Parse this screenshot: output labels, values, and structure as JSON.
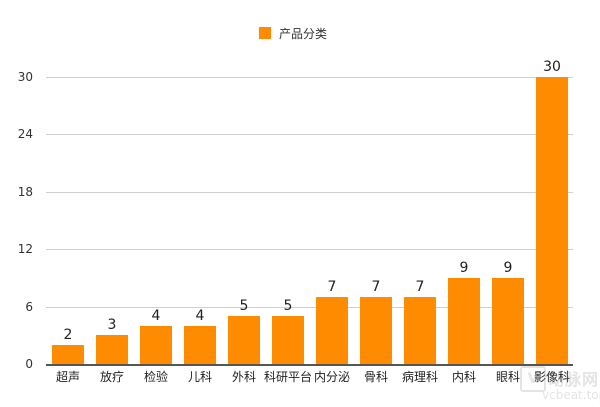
{
  "chart_data": {
    "type": "bar",
    "title": "",
    "xlabel": "",
    "ylabel": "",
    "legend": {
      "position": "top",
      "entries": [
        "产品分类"
      ]
    },
    "series": [
      {
        "name": "产品分类",
        "color": "#ff8c00",
        "values": [
          2,
          3,
          4,
          4,
          5,
          5,
          7,
          7,
          7,
          9,
          9,
          30
        ]
      }
    ],
    "categories": [
      "超声",
      "放疗",
      "检验",
      "儿科",
      "外科",
      "科研平台",
      "内分泌",
      "骨科",
      "病理科",
      "内科",
      "眼科",
      "影像科"
    ],
    "values": [
      2,
      3,
      4,
      4,
      5,
      5,
      7,
      7,
      7,
      9,
      9,
      30
    ],
    "ylim": [
      0,
      30
    ],
    "yticks": [
      0,
      6,
      12,
      18,
      24,
      30
    ],
    "grid": true,
    "data_labels": true
  },
  "legend": {
    "label": "产品分类",
    "color": "#ff8c00"
  },
  "yticks": [
    "30",
    "24",
    "18",
    "12",
    "6",
    "0"
  ],
  "bars": [
    {
      "label": "超声",
      "value": "2"
    },
    {
      "label": "放疗",
      "value": "3"
    },
    {
      "label": "检验",
      "value": "4"
    },
    {
      "label": "儿科",
      "value": "4"
    },
    {
      "label": "外科",
      "value": "5"
    },
    {
      "label": "科研平台",
      "value": "5"
    },
    {
      "label": "内分泌",
      "value": "7"
    },
    {
      "label": "骨科",
      "value": "7"
    },
    {
      "label": "病理科",
      "value": "7"
    },
    {
      "label": "内科",
      "value": "9"
    },
    {
      "label": "眼科",
      "value": "9"
    },
    {
      "label": "影像科",
      "value": "30"
    }
  ],
  "watermark": {
    "logo": "V",
    "text": "动脉网",
    "url": "vcbeat.top"
  }
}
